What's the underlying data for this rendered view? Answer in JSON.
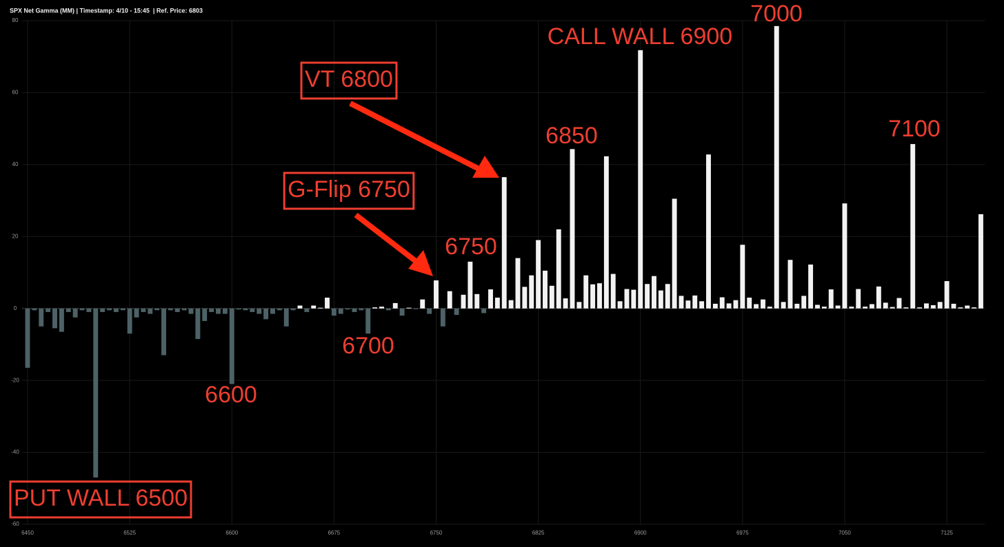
{
  "chart_data": {
    "type": "bar",
    "title": "SPX Net Gamma (MM) | Timestamp: 4/10 - 15:45  | Ref. Price: 6803",
    "x": [
      6450,
      6455,
      6460,
      6465,
      6470,
      6475,
      6480,
      6485,
      6490,
      6495,
      6500,
      6505,
      6510,
      6515,
      6520,
      6525,
      6530,
      6535,
      6540,
      6545,
      6550,
      6555,
      6560,
      6565,
      6570,
      6575,
      6580,
      6585,
      6590,
      6595,
      6600,
      6605,
      6610,
      6615,
      6620,
      6625,
      6630,
      6635,
      6640,
      6645,
      6650,
      6655,
      6660,
      6665,
      6670,
      6675,
      6680,
      6685,
      6690,
      6695,
      6700,
      6705,
      6710,
      6715,
      6720,
      6725,
      6730,
      6735,
      6740,
      6745,
      6750,
      6755,
      6760,
      6765,
      6770,
      6775,
      6780,
      6785,
      6790,
      6795,
      6800,
      6805,
      6810,
      6815,
      6820,
      6825,
      6830,
      6835,
      6840,
      6845,
      6850,
      6855,
      6860,
      6865,
      6870,
      6875,
      6880,
      6885,
      6890,
      6895,
      6900,
      6905,
      6910,
      6915,
      6920,
      6925,
      6930,
      6935,
      6940,
      6945,
      6950,
      6955,
      6960,
      6965,
      6970,
      6975,
      6980,
      6985,
      6990,
      6995,
      7000,
      7005,
      7010,
      7015,
      7020,
      7025,
      7030,
      7035,
      7040,
      7045,
      7050,
      7055,
      7060,
      7065,
      7070,
      7075,
      7080,
      7085,
      7090,
      7095,
      7100,
      7105,
      7110,
      7115,
      7120,
      7125,
      7130,
      7135,
      7140,
      7145,
      7150
    ],
    "values": [
      -16.5,
      -0.5,
      -5,
      -1,
      -5.5,
      -6.5,
      -1,
      -2.5,
      -0.5,
      -1,
      -47,
      -1,
      -0.5,
      -1,
      -0.5,
      -7,
      -2.5,
      -1,
      -1.5,
      -0.5,
      -13,
      -0.5,
      -1,
      -0.5,
      -1.5,
      -8.5,
      -3.5,
      -1,
      -1.5,
      -1.5,
      -21,
      -0.3,
      -0.5,
      -1,
      -1.5,
      -3,
      -1.5,
      -0.5,
      -5,
      -0.5,
      0.8,
      -1,
      0.8,
      0.2,
      3,
      -2,
      -1.5,
      -0.3,
      -1,
      -0.5,
      -7,
      0.3,
      0.5,
      -0.5,
      1.5,
      -2,
      0.2,
      -0.2,
      2.5,
      -1.5,
      7.8,
      -5,
      4.8,
      -1.8,
      3.8,
      13,
      4,
      -1.3,
      5.3,
      3,
      36.5,
      2.3,
      14,
      6,
      9.2,
      19,
      10.5,
      6.3,
      22,
      2.8,
      44.3,
      1.8,
      9.2,
      6.7,
      7,
      42.3,
      9.6,
      2,
      5.4,
      5.2,
      71.8,
      6.8,
      9,
      5,
      6.8,
      30.5,
      3.5,
      2.2,
      3.6,
      2,
      42.8,
      1.3,
      3.1,
      1.4,
      2.3,
      17.7,
      3,
      1.2,
      2.5,
      0.5,
      78.5,
      1.8,
      13.5,
      1.3,
      3.5,
      12.2,
      1,
      0.5,
      5.3,
      0.8,
      29.2,
      0.5,
      5.4,
      0.5,
      1.2,
      6.1,
      1.6,
      0.4,
      2.9,
      0.3,
      45.7,
      0.3,
      1.4,
      0.9,
      1.8,
      7.6,
      1.3,
      0.3,
      0.8,
      0.3,
      26.2
    ],
    "positive_color": "#f2f2f2",
    "negative_color": "#4d6266",
    "xlim": [
      6446,
      7153
    ],
    "xticks": [
      6450,
      6525,
      6600,
      6675,
      6750,
      6825,
      6900,
      6975,
      7050,
      7125
    ],
    "ylim": [
      -60,
      80
    ],
    "yticks": [
      -60,
      -40,
      -20,
      0,
      20,
      40,
      60,
      80
    ],
    "grid": true,
    "annotations": [
      "7000",
      "CALL WALL 6900",
      "VT 6800",
      "6850",
      "7100",
      "G-Flip 6750",
      "6750",
      "6700",
      "6600",
      "PUT WALL 6500"
    ]
  }
}
